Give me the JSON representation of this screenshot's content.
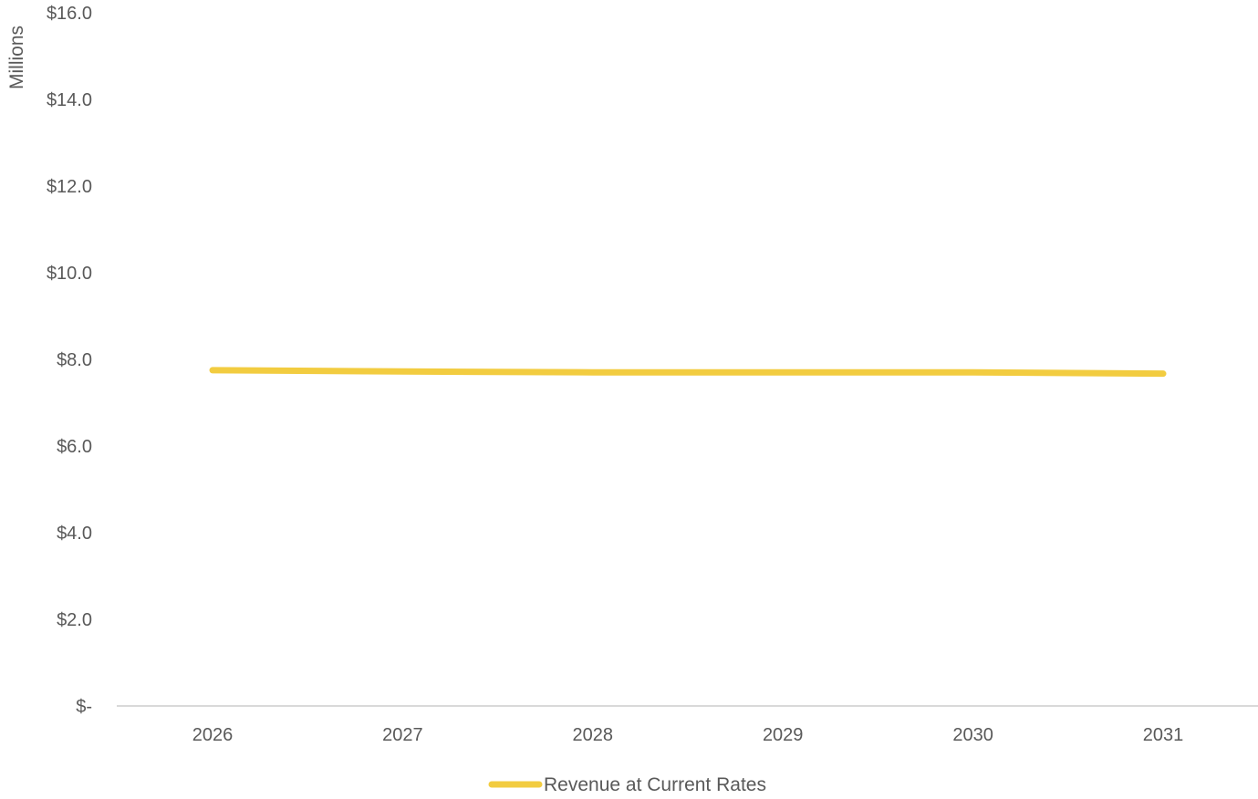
{
  "chart_data": {
    "type": "line",
    "title": "",
    "xlabel": "",
    "ylabel": "Millions",
    "categories": [
      "2026",
      "2027",
      "2028",
      "2029",
      "2030",
      "2031"
    ],
    "y_tick_labels": [
      "$-",
      "$2.0",
      "$4.0",
      "$6.0",
      "$8.0",
      "$10.0",
      "$12.0",
      "$14.0",
      "$16.0"
    ],
    "y_ticks": [
      0,
      2,
      4,
      6,
      8,
      10,
      12,
      14,
      16
    ],
    "ylim": [
      0,
      16
    ],
    "grid": false,
    "legend_position": "bottom",
    "series": [
      {
        "name": "Revenue at Current Rates",
        "color": "#F2CC40",
        "values": [
          7.75,
          7.72,
          7.7,
          7.7,
          7.7,
          7.67
        ]
      }
    ]
  }
}
